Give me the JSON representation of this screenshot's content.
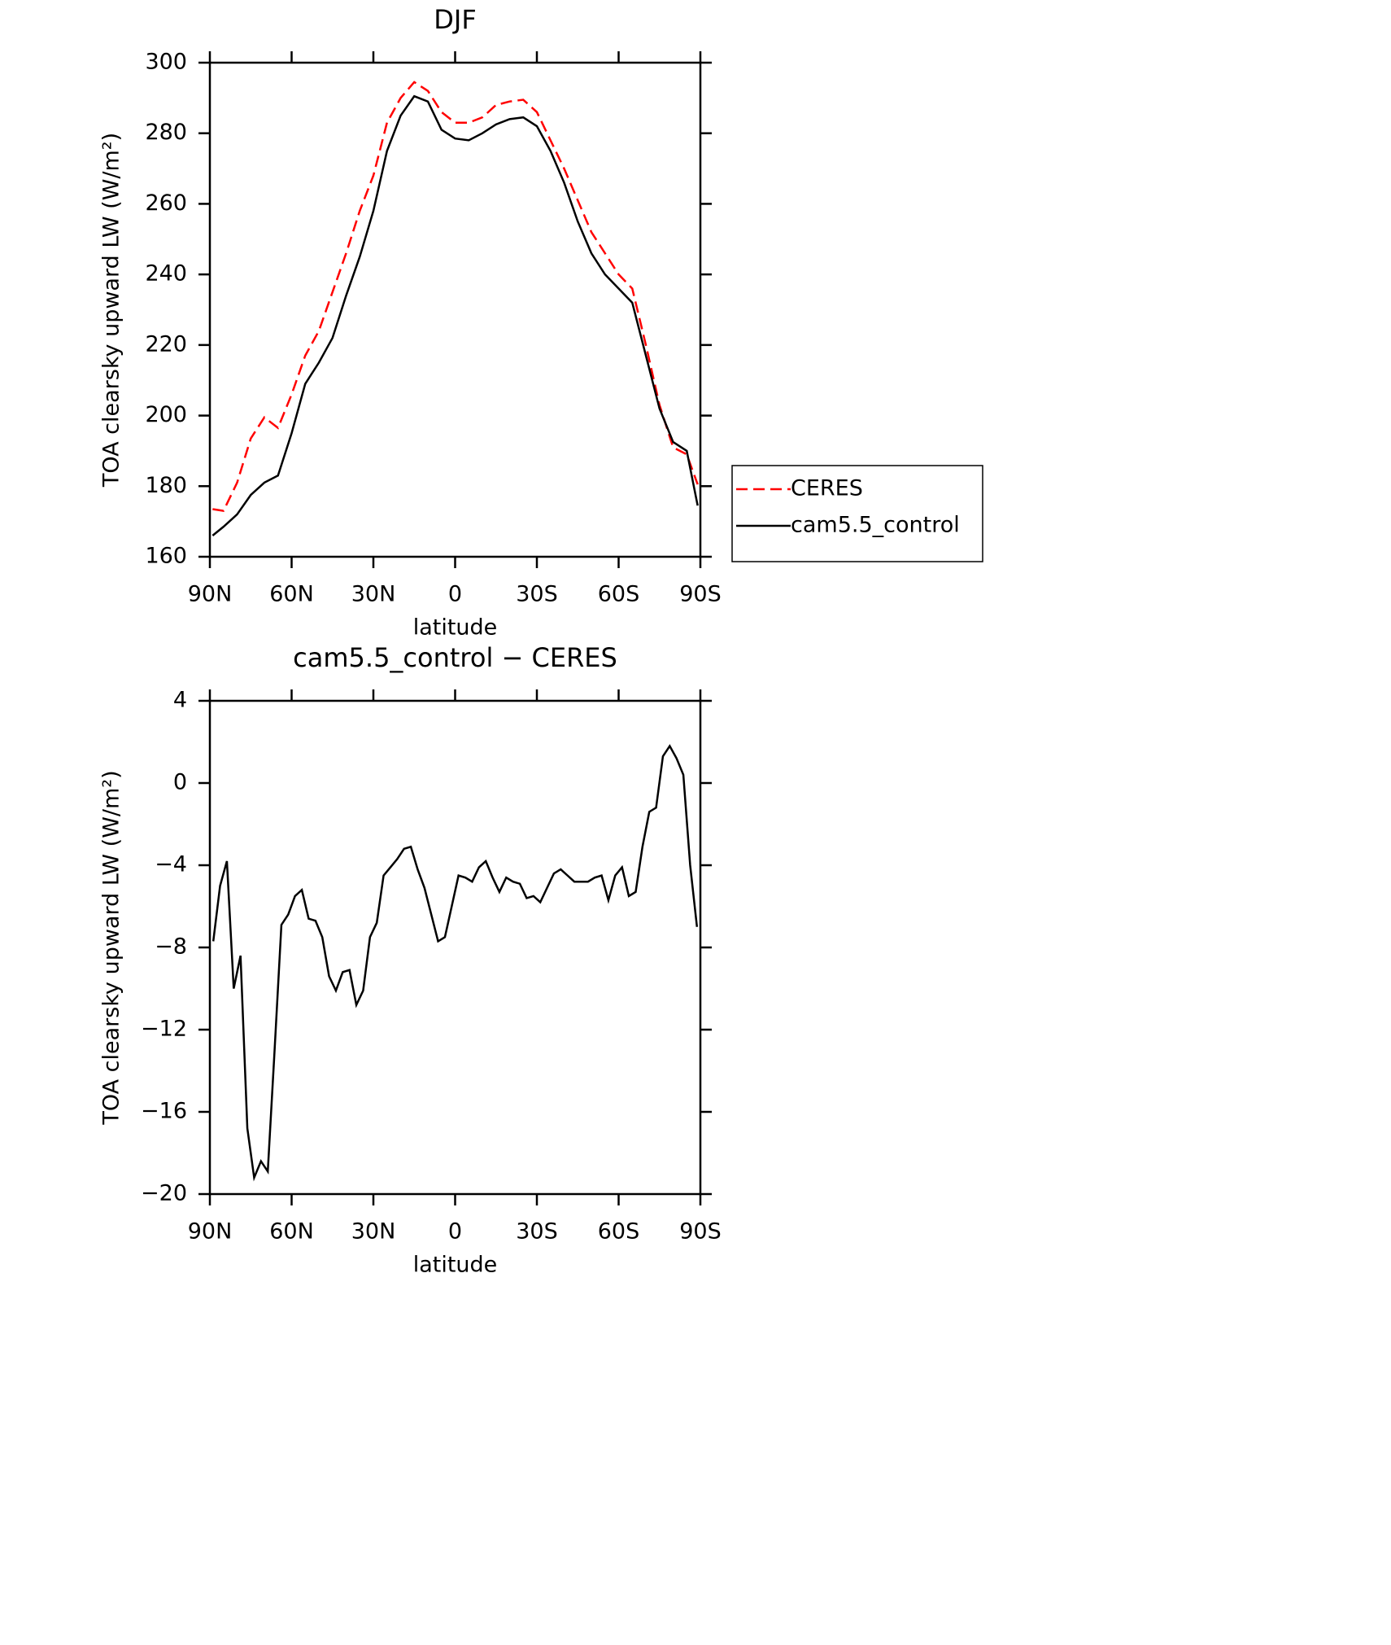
{
  "chart_data": [
    {
      "type": "line",
      "title": "DJF",
      "x_label": "latitude",
      "y_label": "TOA clearsky upward LW (W/m²)",
      "x": [
        89,
        85,
        80,
        75,
        70,
        65,
        60,
        55,
        50,
        45,
        40,
        35,
        30,
        25,
        20,
        15,
        10,
        5,
        0,
        -5,
        -10,
        -15,
        -20,
        -25,
        -30,
        -35,
        -40,
        -45,
        -50,
        -55,
        -60,
        -65,
        -70,
        -75,
        -80,
        -85,
        -89
      ],
      "series": [
        {
          "name": "CERES",
          "color": "#ff0000",
          "dash": "dashed",
          "values": [
            173.5,
            173,
            181,
            193.5,
            199.5,
            196.5,
            206,
            217,
            224,
            235,
            246,
            258,
            268,
            283,
            290,
            294.5,
            292,
            286,
            283,
            283,
            284.5,
            288,
            289,
            289.5,
            286,
            278,
            270,
            261,
            252,
            246,
            240,
            236,
            220,
            203,
            191,
            189,
            180.5
          ]
        },
        {
          "name": "cam5.5_control",
          "color": "#000000",
          "dash": "solid",
          "values": [
            166,
            168.5,
            172,
            177.5,
            181,
            183,
            195,
            209,
            215,
            222,
            234,
            245,
            258,
            275,
            285,
            290.5,
            289,
            281,
            278.5,
            278,
            280,
            282.5,
            284,
            284.5,
            282,
            275,
            266,
            255,
            246,
            240,
            236,
            232,
            217,
            202,
            192.5,
            190,
            174.5
          ]
        }
      ],
      "xlim": [
        90,
        -90
      ],
      "xticks": [
        {
          "value": 90,
          "label": "90N"
        },
        {
          "value": 60,
          "label": "60N"
        },
        {
          "value": 30,
          "label": "30N"
        },
        0,
        {
          "value": -30,
          "label": "30S"
        },
        {
          "value": -60,
          "label": "60S"
        },
        {
          "value": -90,
          "label": "90S"
        }
      ],
      "ylim": [
        160,
        300
      ],
      "yticks": [
        160,
        180,
        200,
        220,
        240,
        260,
        280,
        300
      ],
      "legend": "outside-right"
    },
    {
      "type": "line",
      "title": "cam5.5_control − CERES",
      "x_label": "latitude",
      "y_label": "TOA clearsky upward LW (W/m²)",
      "x": [
        88.75,
        86.25,
        83.75,
        81.25,
        78.75,
        76.25,
        73.75,
        71.25,
        68.75,
        66.25,
        63.75,
        61.25,
        58.75,
        56.25,
        53.75,
        51.25,
        48.75,
        46.25,
        43.75,
        41.25,
        38.75,
        36.25,
        33.75,
        31.25,
        28.75,
        26.25,
        23.75,
        21.25,
        18.75,
        16.25,
        13.75,
        11.25,
        8.75,
        6.25,
        3.75,
        1.25,
        -1.25,
        -3.75,
        -6.25,
        -8.75,
        -11.25,
        -13.75,
        -16.25,
        -18.75,
        -21.25,
        -23.75,
        -26.25,
        -28.75,
        -31.25,
        -33.75,
        -36.25,
        -38.75,
        -41.25,
        -43.75,
        -46.25,
        -48.75,
        -51.25,
        -53.75,
        -56.25,
        -58.75,
        -61.25,
        -63.75,
        -66.25,
        -68.75,
        -71.25,
        -73.75,
        -76.25,
        -78.75,
        -81.25,
        -83.75,
        -86.25,
        -88.75
      ],
      "values": [
        -7.7,
        -5,
        -3.8,
        -10,
        -8.4,
        -16.8,
        -19.2,
        -18.4,
        -18.9,
        -13,
        -6.9,
        -6.4,
        -5.5,
        -5.2,
        -6.6,
        -6.7,
        -7.5,
        -9.4,
        -10.1,
        -9.2,
        -9.1,
        -10.8,
        -10.1,
        -7.5,
        -6.8,
        -4.5,
        -4.1,
        -3.7,
        -3.2,
        -3.1,
        -4.2,
        -5.1,
        -6.4,
        -7.7,
        -7.5,
        -6,
        -4.5,
        -4.6,
        -4.8,
        -4.1,
        -3.8,
        -4.6,
        -5.3,
        -4.6,
        -4.8,
        -4.9,
        -5.6,
        -5.5,
        -5.8,
        -5.1,
        -4.4,
        -4.2,
        -4.5,
        -4.8,
        -4.8,
        -4.8,
        -4.6,
        -4.5,
        -5.7,
        -4.5,
        -4.1,
        -5.5,
        -5.3,
        -3.1,
        -1.4,
        -1.2,
        1.3,
        1.8,
        1.2,
        0.4,
        -4,
        -7
      ],
      "color": "#000000",
      "xlim": [
        90,
        -90
      ],
      "xticks": [
        {
          "value": 90,
          "label": "90N"
        },
        {
          "value": 60,
          "label": "60N"
        },
        {
          "value": 30,
          "label": "30N"
        },
        0,
        {
          "value": -30,
          "label": "30S"
        },
        {
          "value": -60,
          "label": "60S"
        },
        {
          "value": -90,
          "label": "90S"
        }
      ],
      "ylim": [
        -20,
        4
      ],
      "yticks": [
        {
          "value": -20,
          "label": "−20"
        },
        {
          "value": -16,
          "label": "−16"
        },
        {
          "value": -12,
          "label": "−12"
        },
        {
          "value": -8,
          "label": "−8"
        },
        {
          "value": -4,
          "label": "−4"
        },
        0,
        4
      ]
    }
  ]
}
